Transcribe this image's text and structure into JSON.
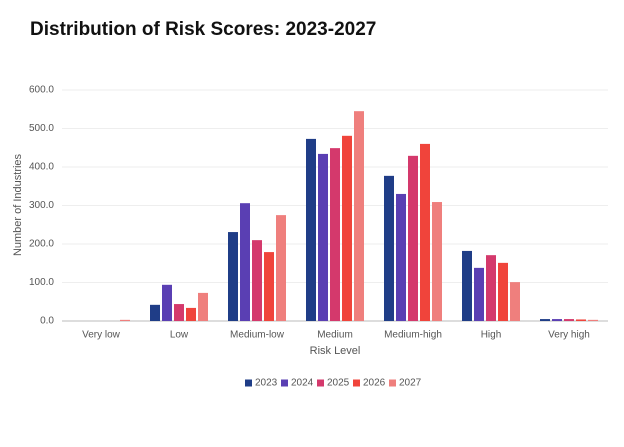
{
  "chart_data": {
    "type": "bar",
    "title": "Distribution of Risk Scores: 2023-2027",
    "x_label": "Risk Level",
    "y_label": "Number of Industries",
    "categories": [
      "Very low",
      "Low",
      "Medium-low",
      "Medium",
      "Medium-high",
      "High",
      "Very high"
    ],
    "series": [
      {
        "name": "2023",
        "color": "#1f3d87",
        "values": [
          0,
          42,
          231,
          473,
          377,
          182,
          5
        ]
      },
      {
        "name": "2024",
        "color": "#5a3fb3",
        "values": [
          0,
          94,
          306,
          434,
          330,
          138,
          5
        ]
      },
      {
        "name": "2025",
        "color": "#d4396c",
        "values": [
          0,
          44,
          210,
          449,
          429,
          171,
          5
        ]
      },
      {
        "name": "2026",
        "color": "#f0443b",
        "values": [
          0,
          34,
          179,
          481,
          460,
          151,
          4
        ]
      },
      {
        "name": "2027",
        "color": "#ef7f7d",
        "values": [
          3,
          73,
          275,
          545,
          309,
          101,
          3
        ]
      }
    ],
    "ylim": [
      0,
      600
    ],
    "yticks": [
      {
        "value": 0,
        "label": "0.0"
      },
      {
        "value": 100,
        "label": "100.0"
      },
      {
        "value": 200,
        "label": "200.0"
      },
      {
        "value": 300,
        "label": "300.0"
      },
      {
        "value": 400,
        "label": "400.0"
      },
      {
        "value": 500,
        "label": "500.0"
      },
      {
        "value": 600,
        "label": "600.0"
      }
    ],
    "grid": true,
    "legend": "bottom"
  }
}
